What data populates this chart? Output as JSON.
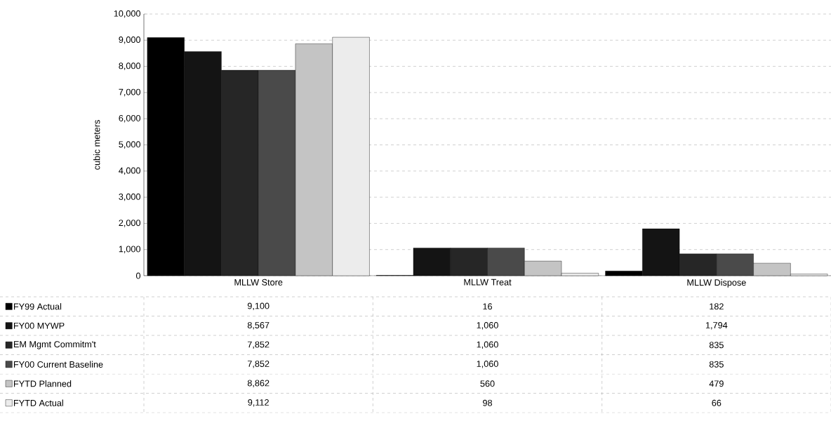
{
  "chart_data": {
    "type": "bar",
    "ylabel": "cubic meters",
    "categories": [
      "MLLW Store",
      "MLLW Treat",
      "MLLW Dispose"
    ],
    "series": [
      {
        "name": "FY99 Actual",
        "color": "#000000",
        "values": [
          9100,
          16,
          182
        ],
        "value_labels": [
          "9,100",
          "16",
          "182"
        ]
      },
      {
        "name": "FY00 MYWP",
        "color": "#141414",
        "values": [
          8567,
          1060,
          1794
        ],
        "value_labels": [
          "8,567",
          "1,060",
          "1,794"
        ]
      },
      {
        "name": "EM Mgmt Commitm't",
        "color": "#262626",
        "values": [
          7852,
          1060,
          835
        ],
        "value_labels": [
          "7,852",
          "1,060",
          "835"
        ]
      },
      {
        "name": "FY00 Current Baseline",
        "color": "#4a4a4a",
        "values": [
          7852,
          1060,
          835
        ],
        "value_labels": [
          "7,852",
          "1,060",
          "835"
        ]
      },
      {
        "name": "FYTD Planned",
        "color": "#c4c4c4",
        "values": [
          8862,
          560,
          479
        ],
        "value_labels": [
          "8,862",
          "560",
          "479"
        ]
      },
      {
        "name": "FYTD Actual",
        "color": "#ececec",
        "values": [
          9112,
          98,
          66
        ],
        "value_labels": [
          "9,112",
          "98",
          "66"
        ]
      }
    ],
    "ylim": [
      0,
      10000
    ],
    "yticks": [
      0,
      {
        "value": 1000,
        "label": "1,000"
      },
      {
        "value": 2000,
        "label": "2,000"
      },
      {
        "value": 3000,
        "label": "3,000"
      },
      {
        "value": 4000,
        "label": "4,000"
      },
      {
        "value": 5000,
        "label": "5,000"
      },
      {
        "value": 6000,
        "label": "6,000"
      },
      {
        "value": 7000,
        "label": "7,000"
      },
      {
        "value": 8000,
        "label": "8,000"
      },
      {
        "value": 9000,
        "label": "9,000"
      },
      {
        "value": 10000,
        "label": "10,000"
      }
    ],
    "grid": "y",
    "legend": "bottom left"
  }
}
